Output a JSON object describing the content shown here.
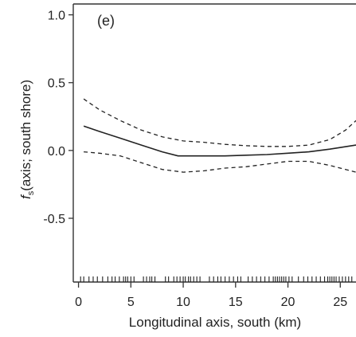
{
  "chart_data": {
    "type": "line",
    "panel_label": "(e)",
    "xlabel": "Longitudinal axis, south (km)",
    "ylabel_italic": "f",
    "ylabel_sub": "s",
    "ylabel_rest": "(axis; south shore)",
    "xlim": [
      -0.5,
      26.5
    ],
    "ylim": [
      -0.97,
      1.08
    ],
    "xticks": [
      0,
      5,
      10,
      15,
      20,
      25
    ],
    "yticks": [
      1.0,
      0.5,
      0.0,
      -0.5
    ],
    "ytick_labels": [
      "1.0",
      "0.5",
      "0.0",
      "-0.5"
    ],
    "series": [
      {
        "role": "fit",
        "style": "solid",
        "x": [
          0.5,
          2,
          4,
          6,
          8,
          9.5,
          12,
          14,
          16,
          18,
          20,
          22,
          24,
          26.5
        ],
        "y": [
          0.18,
          0.14,
          0.09,
          0.04,
          -0.01,
          -0.04,
          -0.04,
          -0.04,
          -0.035,
          -0.03,
          -0.02,
          -0.01,
          0.01,
          0.04
        ]
      },
      {
        "role": "upper-ci",
        "style": "dashed",
        "x": [
          0.5,
          2,
          4,
          6,
          8,
          10,
          12,
          14,
          16,
          18,
          20,
          22,
          24,
          25.5,
          26.5
        ],
        "y": [
          0.38,
          0.3,
          0.22,
          0.15,
          0.1,
          0.07,
          0.06,
          0.045,
          0.035,
          0.03,
          0.03,
          0.04,
          0.08,
          0.15,
          0.22
        ]
      },
      {
        "role": "lower-ci",
        "style": "dashed",
        "x": [
          0.5,
          2,
          4,
          6,
          8,
          10,
          12,
          14,
          16,
          18,
          20,
          22,
          24,
          26.5
        ],
        "y": [
          -0.01,
          -0.02,
          -0.04,
          -0.09,
          -0.14,
          -0.16,
          -0.15,
          -0.13,
          -0.12,
          -0.1,
          -0.08,
          -0.08,
          -0.11,
          -0.16
        ]
      }
    ],
    "rug": [
      0.2,
      0.5,
      1.0,
      1.4,
      1.8,
      2.3,
      2.8,
      3.2,
      3.5,
      3.9,
      4.3,
      4.5,
      4.7,
      5.0,
      5.3,
      6.2,
      6.5,
      6.8,
      7.0,
      7.3,
      8.3,
      8.6,
      9.1,
      9.4,
      9.7,
      10.0,
      10.2,
      10.5,
      10.7,
      11.0,
      11.3,
      11.6,
      12.5,
      12.9,
      13.3,
      13.6,
      14.0,
      14.4,
      14.8,
      15.2,
      15.5,
      16.2,
      16.6,
      17.0,
      17.4,
      17.8,
      18.2,
      18.6,
      18.8,
      19.0,
      19.2,
      19.4,
      19.6,
      19.8,
      20.1,
      20.4,
      21.0,
      21.5,
      21.9,
      22.3,
      22.7,
      23.1,
      23.5,
      23.8,
      24.0,
      24.2,
      24.4,
      24.6,
      24.9,
      25.2,
      25.5,
      25.8,
      26.1
    ]
  }
}
